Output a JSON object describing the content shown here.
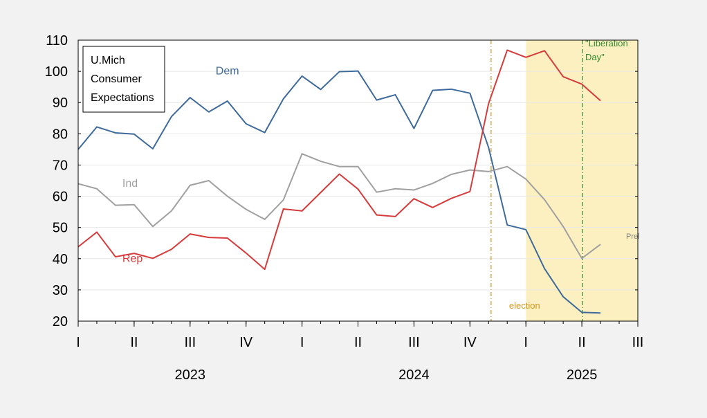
{
  "chart_data": {
    "type": "line",
    "title_box": [
      "U.Mich",
      "Consumer",
      "Expectations"
    ],
    "xlabel": "",
    "ylabel": "",
    "ylim": [
      20,
      110
    ],
    "yticks": [
      20,
      30,
      40,
      50,
      60,
      70,
      80,
      90,
      100,
      110
    ],
    "x_start": "2023-01",
    "x_end": "2025-07",
    "quarter_ticks": [
      {
        "month": "2023-01",
        "label": "I"
      },
      {
        "month": "2023-04",
        "label": "II"
      },
      {
        "month": "2023-07",
        "label": "III"
      },
      {
        "month": "2023-10",
        "label": "IV"
      },
      {
        "month": "2024-01",
        "label": "I"
      },
      {
        "month": "2024-04",
        "label": "II"
      },
      {
        "month": "2024-07",
        "label": "III"
      },
      {
        "month": "2024-10",
        "label": "IV"
      },
      {
        "month": "2025-01",
        "label": "I"
      },
      {
        "month": "2025-04",
        "label": "II"
      },
      {
        "month": "2025-07",
        "label": "III"
      }
    ],
    "year_labels": [
      {
        "month": "2023-07",
        "label": "2023"
      },
      {
        "month": "2024-07",
        "label": "2024"
      },
      {
        "month": "2025-04",
        "label": "2025"
      }
    ],
    "months": [
      "2023-01",
      "2023-02",
      "2023-03",
      "2023-04",
      "2023-05",
      "2023-06",
      "2023-07",
      "2023-08",
      "2023-09",
      "2023-10",
      "2023-11",
      "2023-12",
      "2024-01",
      "2024-02",
      "2024-03",
      "2024-04",
      "2024-05",
      "2024-06",
      "2024-07",
      "2024-08",
      "2024-09",
      "2024-10",
      "2024-11",
      "2024-12",
      "2025-01",
      "2025-02",
      "2025-03",
      "2025-04",
      "2025-05"
    ],
    "series": [
      {
        "name": "Dem",
        "color": "#3d6a9a",
        "values": [
          75.0,
          82.2,
          80.3,
          79.9,
          75.2,
          85.5,
          91.6,
          87.0,
          90.5,
          83.2,
          80.4,
          91.2,
          98.5,
          94.2,
          99.9,
          100.1,
          90.8,
          92.5,
          81.7,
          93.9,
          94.3,
          93.0,
          75.6,
          50.8,
          49.3,
          36.8,
          27.8,
          22.8,
          22.6
        ]
      },
      {
        "name": "Ind",
        "color": "#a0a0a0",
        "values": [
          64.0,
          62.4,
          57.1,
          57.3,
          50.3,
          55.3,
          63.5,
          65.0,
          60.0,
          55.8,
          52.6,
          58.8,
          73.6,
          71.2,
          69.5,
          69.5,
          61.3,
          62.4,
          62.0,
          64.1,
          67.0,
          68.4,
          67.9,
          69.5,
          65.5,
          58.9,
          50.3,
          40.1,
          44.6
        ]
      },
      {
        "name": "Rep",
        "color": "#d63a3a",
        "values": [
          43.8,
          48.5,
          40.6,
          41.7,
          40.1,
          43.0,
          47.9,
          46.8,
          46.6,
          41.8,
          36.6,
          55.9,
          55.3,
          61.2,
          67.1,
          62.3,
          54.0,
          53.5,
          59.2,
          56.4,
          59.3,
          61.5,
          89.7,
          106.8,
          104.5,
          106.6,
          98.3,
          95.9,
          90.6
        ]
      }
    ],
    "series_labels": [
      {
        "series": "Dem",
        "text": "Dem",
        "month": "2023-08",
        "y": 99
      },
      {
        "series": "Ind",
        "text": "Ind",
        "month": "2023-03",
        "y": 63
      },
      {
        "series": "Rep",
        "text": "Rep",
        "month": "2023-03",
        "y": 39
      }
    ],
    "prel_label": {
      "text": "Prel",
      "color": "#7f7f7f",
      "month": "2025-06",
      "y": 47
    },
    "shaded_region": {
      "from": "2025-01",
      "to": "2025-07",
      "color": "#fdf0c0"
    },
    "event_lines": [
      {
        "name": "election",
        "month": "2024-11-05",
        "color": "#d4961e",
        "label_lines": [
          "election"
        ],
        "label_y": 24
      },
      {
        "name": "liberation-day",
        "month": "2025-04-02",
        "color": "#2f8a2f",
        "label_lines": [
          "\"Liberation",
          "Day\""
        ],
        "label_y": 108
      }
    ]
  }
}
